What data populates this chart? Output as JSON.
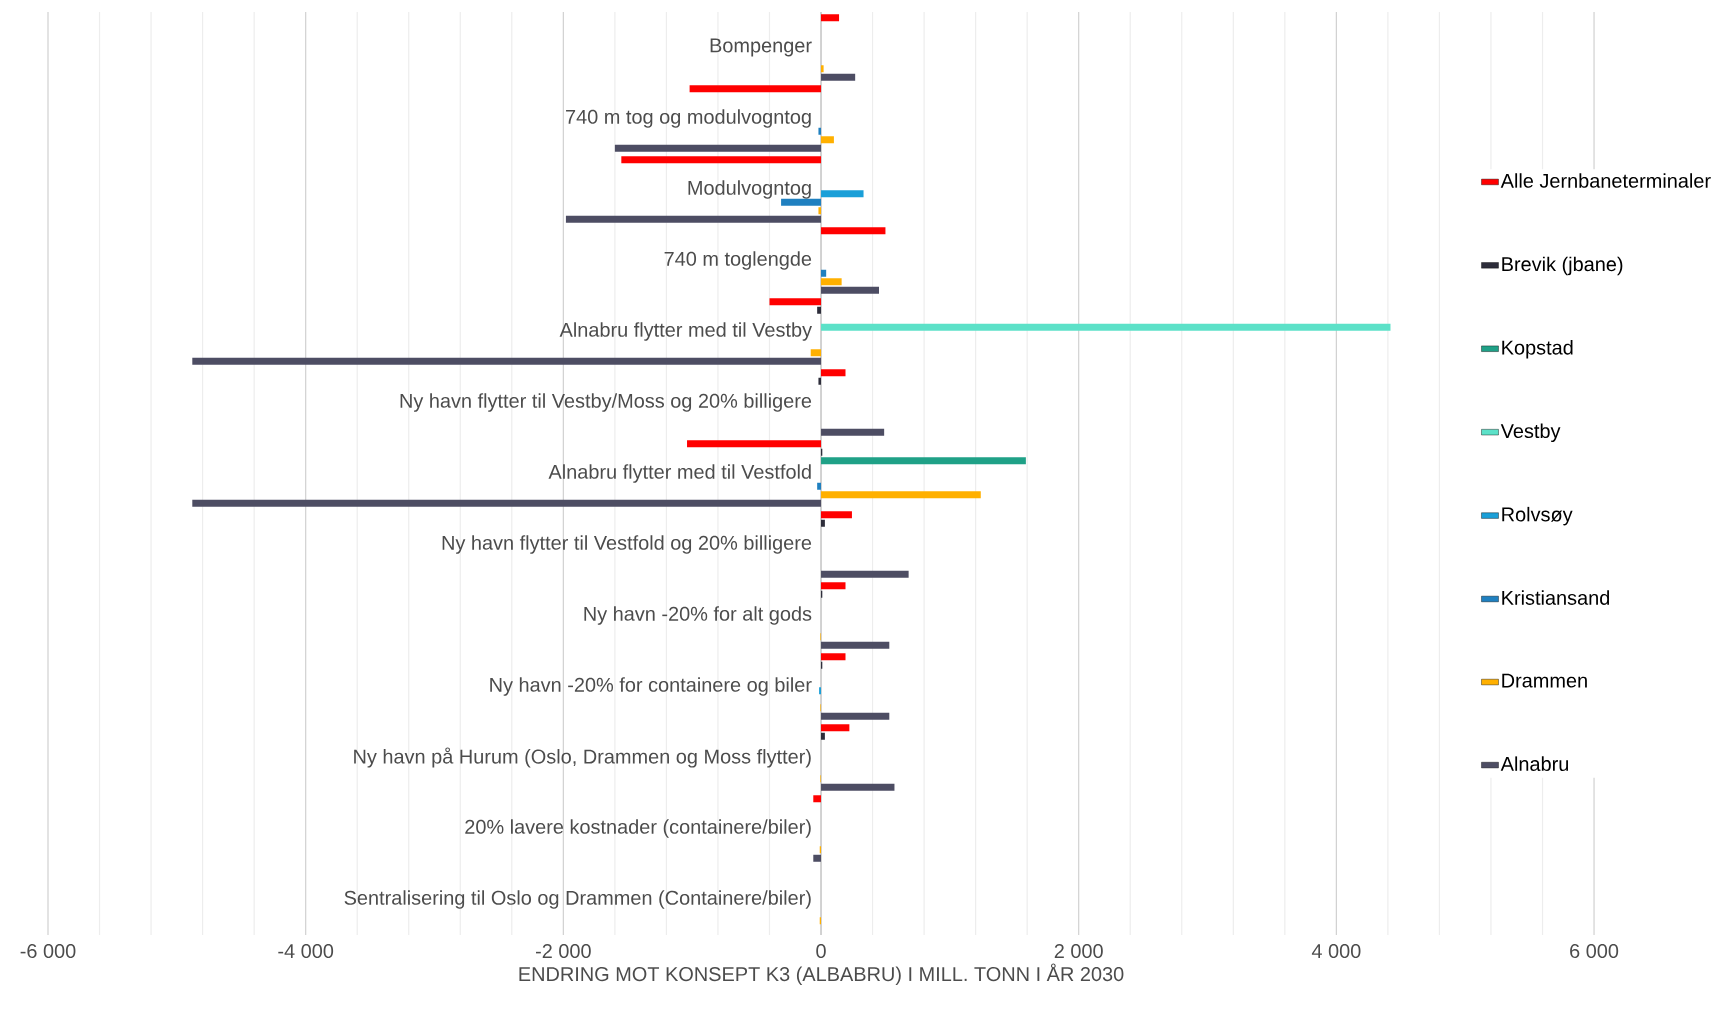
{
  "chart_data": {
    "type": "bar",
    "orientation": "horizontal",
    "xlabel": "ENDRING MOT KONSEPT K3 (ALBABRU) I MILL. TONN I ÅR 2030",
    "categories": [
      "Bompenger",
      "740 m tog og modulvogntog",
      "Modulvogntog",
      "740 m toglengde",
      "Alnabru flytter med til Vestby",
      "Ny havn flytter til Vestby/Moss og 20% billigere",
      "Alnabru flytter med til Vestfold",
      "Ny havn flytter til Vestfold og 20% billigere",
      "Ny havn -20% for alt gods",
      "Ny havn -20% for containere og biler",
      "Ny havn på Hurum (Oslo, Drammen og Moss flytter)",
      "20% lavere kostnader (containere/biler)",
      "Sentralisering til Oslo og Drammen (Containere/biler)"
    ],
    "series": [
      {
        "name": "Alle Jernbaneterminaler",
        "color": "#ff0000",
        "values": [
          140,
          -1020,
          -1550,
          500,
          -400,
          190,
          -1040,
          240,
          190,
          190,
          220,
          -60,
          null
        ]
      },
      {
        "name": "Brevik (jbane)",
        "color": "#2d2d3a",
        "values": [
          null,
          null,
          null,
          null,
          -30,
          -20,
          10,
          30,
          10,
          10,
          30,
          null,
          null
        ]
      },
      {
        "name": "Kopstad",
        "color": "#1fa187",
        "values": [
          null,
          null,
          null,
          null,
          null,
          null,
          1590,
          null,
          null,
          null,
          null,
          null,
          null
        ]
      },
      {
        "name": "Vestby",
        "color": "#5ce1c8",
        "values": [
          null,
          null,
          null,
          null,
          4420,
          null,
          null,
          null,
          null,
          null,
          null,
          null,
          null
        ]
      },
      {
        "name": "Rolvsøy",
        "color": "#1a9fd8",
        "values": [
          null,
          null,
          330,
          null,
          null,
          null,
          null,
          null,
          null,
          -15,
          null,
          null,
          null
        ]
      },
      {
        "name": "Kristiansand",
        "color": "#1f80c0",
        "values": [
          null,
          -20,
          -310,
          40,
          null,
          null,
          -30,
          null,
          null,
          null,
          null,
          null,
          null
        ]
      },
      {
        "name": "Drammen",
        "color": "#ffb000",
        "values": [
          20,
          100,
          -20,
          160,
          -80,
          null,
          1240,
          null,
          -5,
          -5,
          -5,
          -10,
          -10
        ]
      },
      {
        "name": "Alnabru",
        "color": "#4d4d63",
        "values": [
          265,
          -1600,
          -1980,
          450,
          -4880,
          490,
          -4880,
          680,
          530,
          530,
          570,
          -60,
          null
        ]
      }
    ],
    "xlim": [
      -6000,
      6000
    ],
    "xticks": [
      {
        "value": -6000,
        "label": "-6 000"
      },
      {
        "value": -4000,
        "label": "-4 000"
      },
      {
        "value": -2000,
        "label": "-2 000"
      },
      0,
      {
        "value": 2000,
        "label": "2 000"
      },
      {
        "value": 4000,
        "label": "4 000"
      },
      {
        "value": 6000,
        "label": "6 000"
      }
    ],
    "grid": "x",
    "legend": "right"
  }
}
